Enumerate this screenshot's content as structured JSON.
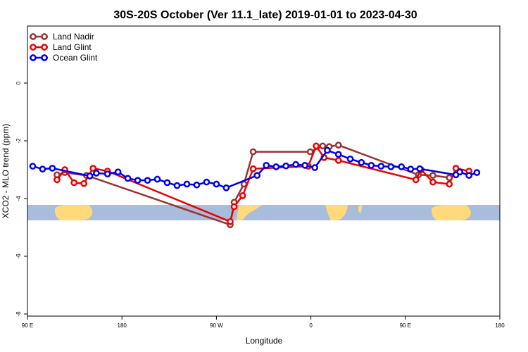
{
  "chart_data": {
    "type": "line",
    "title": "30S-20S October (Ver 11.1_late)   2019-01-01 to 2023-04-30",
    "xlabel": "Longitude",
    "ylabel": "XCO2 - MLO trend (ppm)",
    "xlim": [
      90,
      450
    ],
    "ylim": [
      -8,
      2
    ],
    "x_ticks": [
      {
        "value": 90,
        "label": "90 E"
      },
      {
        "value": 162,
        "label": "180"
      },
      {
        "value": 234,
        "label": "90 W"
      },
      {
        "value": 306,
        "label": "0"
      },
      {
        "value": 378,
        "label": "90 E"
      },
      {
        "value": 450,
        "label": "180"
      }
    ],
    "y_ticks": [
      {
        "value": 0,
        "label": "0"
      },
      {
        "value": -2,
        "label": "-2"
      },
      {
        "value": -4,
        "label": "-4"
      },
      {
        "value": -6,
        "label": "-6"
      },
      {
        "value": -8,
        "label": "-8"
      }
    ],
    "legend_position": "top-left",
    "series": [
      {
        "name": "Land Nadir",
        "color": "#993333",
        "points": [
          [
            112.5,
            -3.18
          ],
          [
            118.5,
            -3.1
          ],
          [
            135,
            -3.2
          ],
          [
            244.5,
            -4.91
          ],
          [
            247.5,
            -4.13
          ],
          [
            255,
            -3.5
          ],
          [
            262,
            -2.38
          ],
          [
            305.5,
            -2.38
          ],
          [
            315,
            -2.18
          ],
          [
            320,
            -2.2
          ],
          [
            327,
            -2.15
          ],
          [
            388,
            -3.18
          ],
          [
            399,
            -3.2
          ],
          [
            411.5,
            -3.28
          ]
        ]
      },
      {
        "name": "Land Glint",
        "color": "#ee0000",
        "points": [
          [
            112.5,
            -3.35
          ],
          [
            118.5,
            -3.0
          ],
          [
            125.5,
            -3.45
          ],
          [
            133,
            -3.48
          ],
          [
            140,
            -2.95
          ],
          [
            151,
            -3.05
          ],
          [
            244.5,
            -4.8
          ],
          [
            247.5,
            -4.28
          ],
          [
            254,
            -3.9
          ],
          [
            262,
            -2.97
          ],
          [
            304,
            -2.88
          ],
          [
            310,
            -2.18
          ],
          [
            316,
            -2.58
          ],
          [
            327,
            -2.68
          ],
          [
            386,
            -3.35
          ],
          [
            390,
            -3.0
          ],
          [
            399,
            -3.43
          ],
          [
            411.5,
            -3.5
          ],
          [
            416.5,
            -2.95
          ],
          [
            426.5,
            -3.05
          ]
        ]
      },
      {
        "name": "Ocean Glint",
        "color": "#0000ee",
        "points": [
          [
            94,
            -2.88
          ],
          [
            101.5,
            -2.98
          ],
          [
            109,
            -2.95
          ],
          [
            137.5,
            -3.22
          ],
          [
            142.5,
            -3.12
          ],
          [
            151,
            -3.15
          ],
          [
            159,
            -3.08
          ],
          [
            166.5,
            -3.3
          ],
          [
            174,
            -3.37
          ],
          [
            181.5,
            -3.37
          ],
          [
            189,
            -3.33
          ],
          [
            196.5,
            -3.45
          ],
          [
            204,
            -3.55
          ],
          [
            211.5,
            -3.5
          ],
          [
            219,
            -3.53
          ],
          [
            226.5,
            -3.43
          ],
          [
            234,
            -3.5
          ],
          [
            241.5,
            -3.63
          ],
          [
            265,
            -3.2
          ],
          [
            272,
            -2.85
          ],
          [
            279.5,
            -2.9
          ],
          [
            287,
            -2.87
          ],
          [
            294.5,
            -2.82
          ],
          [
            301.5,
            -2.85
          ],
          [
            309,
            -2.93
          ],
          [
            318.5,
            -2.33
          ],
          [
            327,
            -2.47
          ],
          [
            336,
            -2.63
          ],
          [
            344.5,
            -2.75
          ],
          [
            352,
            -2.85
          ],
          [
            359.5,
            -2.88
          ],
          [
            367,
            -2.9
          ],
          [
            375,
            -2.9
          ],
          [
            382,
            -2.98
          ],
          [
            389,
            -2.97
          ],
          [
            416.5,
            -3.18
          ],
          [
            419.5,
            -3.08
          ],
          [
            426.5,
            -3.2
          ],
          [
            432.5,
            -3.1
          ]
        ]
      }
    ]
  }
}
